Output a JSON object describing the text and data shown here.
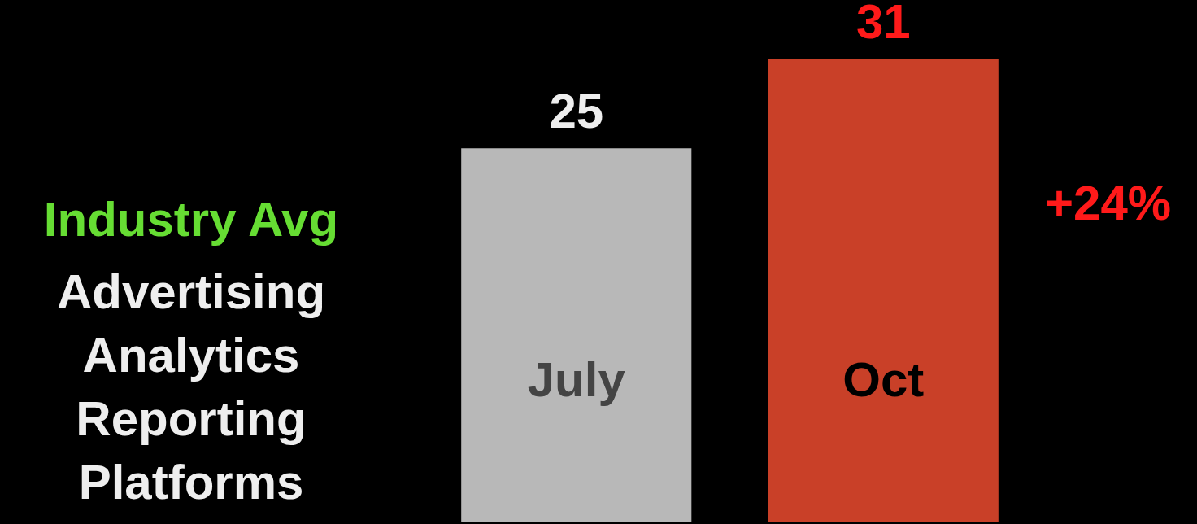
{
  "chart_data": {
    "type": "bar",
    "title": "Industry Avg",
    "subtitle": "Advertising Analytics Reporting Platforms",
    "categories": [
      "July",
      "Oct"
    ],
    "values": [
      25,
      31
    ],
    "colors": [
      "#b8b8b8",
      "#c94028"
    ],
    "data_labels": true,
    "annotations": [
      "+24%"
    ]
  }
}
